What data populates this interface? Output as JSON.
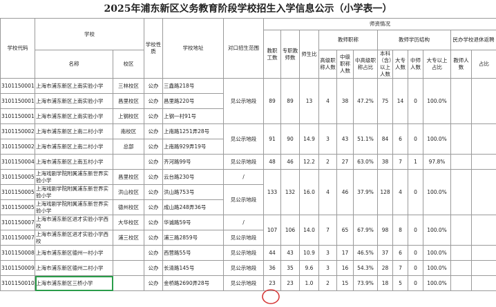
{
  "title": "2025年浦东新区义务教育阶段学校招生入学信息公示（小学表一）",
  "header": {
    "code": "学校代码",
    "school": "学校",
    "name": "名称",
    "campus": "校区",
    "nature": "学校性质",
    "address": "学校地址",
    "scope": "对口招生范围",
    "staffing": "师资情况",
    "staff": "教职工数",
    "teachers": "专职教师数",
    "ratio": "师生比",
    "titles": "教师职称",
    "senior": "高级职称人数",
    "middle": "中级职称人数",
    "mid_senior_pct": "中高级职称占比",
    "education": "教师学历结构",
    "bachelor": "本科（含）以上人数",
    "college": "大专人数",
    "normal": "中师人数",
    "college_pct": "大专以上占比",
    "private": "民办学校退休返聘",
    "private_teachers": "教师人数",
    "private_pct": "占比"
  },
  "rows": [
    {
      "code": "3101150001",
      "name": "上海市浦东新区上南实验小学",
      "campus": "三林校区",
      "nature": "公办",
      "address": "三鑫路218号",
      "scope": "见公示地段",
      "staff": 89,
      "teachers": 89,
      "ratio": "13",
      "senior": 4,
      "middle": 38,
      "mid_senior_pct": "47.2%",
      "bachelor": 75,
      "college": 14,
      "normal": 0,
      "college_pct": "100.0%"
    },
    {
      "code": "3101150001",
      "name": "上海市浦东新区上南实验小学",
      "campus": "昌里校区",
      "nature": "公办",
      "address": "昌里路220号"
    },
    {
      "code": "3101150001",
      "name": "上海市浦东新区上南实验小学",
      "campus": "上钢校区",
      "nature": "公办",
      "address": "上钢一村91号"
    },
    {
      "code": "3101150002",
      "name": "上海市浦东新区上南二村小学",
      "campus": "南校区",
      "nature": "公办",
      "address": "上南路1251弄28号",
      "scope": "见公示地段",
      "staff": 91,
      "teachers": 90,
      "ratio": "14.9",
      "senior": 3,
      "middle": 43,
      "mid_senior_pct": "51.1%",
      "bachelor": 84,
      "college": 6,
      "normal": 0,
      "college_pct": "100.0%"
    },
    {
      "code": "3101150002",
      "name": "上海市浦东新区上南二村小学",
      "campus": "总部",
      "nature": "公办",
      "address": "上南路929弄19号"
    },
    {
      "code": "3101150004",
      "name": "上海市浦东新区上南五村小学",
      "nature": "公办",
      "address": "齐河路99号",
      "scope": "见公示地段",
      "staff": 48,
      "teachers": 46,
      "ratio": "12.2",
      "senior": 2,
      "middle": 27,
      "mid_senior_pct": "63.0%",
      "bachelor": 38,
      "college": 7,
      "normal": 1,
      "college_pct": "97.8%"
    },
    {
      "code": "3101150005",
      "name": "上海戏剧学院附属浦东新世界实验小学",
      "campus": "昌里校区",
      "nature": "公办",
      "address": "云台路230号",
      "scope": "/",
      "staff": 133,
      "teachers": 132,
      "ratio": "16.0",
      "senior": 4,
      "middle": 46,
      "mid_senior_pct": "37.9%",
      "bachelor": 128,
      "college": 4,
      "normal": 0,
      "college_pct": "100.0%"
    },
    {
      "code": "3101150005",
      "name": "上海戏剧学院附属浦东新世界实验小学",
      "campus": "洪山校区",
      "nature": "公办",
      "address": "洪山路753号",
      "scope": "见公示地段"
    },
    {
      "code": "3101150005",
      "name": "上海戏剧学院附属浦东新世界实验小学",
      "campus": "德州校区",
      "nature": "公办",
      "address": "成山路248弄36号"
    },
    {
      "code": "3101150007",
      "name": "上海市浦东新区进才实验小学西校",
      "campus": "大华校区",
      "nature": "公办",
      "address": "华诚路59号",
      "scope": "/",
      "staff": 107,
      "teachers": 106,
      "ratio": "14.0",
      "senior": 7,
      "middle": 65,
      "mid_senior_pct": "67.9%",
      "bachelor": 98,
      "college": 8,
      "normal": 0,
      "college_pct": "100.0%"
    },
    {
      "code": "3101150007",
      "name": "上海市浦东新区进才实验小学西校",
      "campus": "浦三校区",
      "nature": "公办",
      "address": "浦三路2859号",
      "scope": "见公示地段"
    },
    {
      "code": "3101150008",
      "name": "上海市浦东新区德州一村小学",
      "nature": "公办",
      "address": "西营路55号",
      "scope": "见公示地段",
      "staff": 44,
      "teachers": 43,
      "ratio": "10.9",
      "senior": 3,
      "middle": 17,
      "mid_senior_pct": "46.5%",
      "bachelor": 37,
      "college": 6,
      "normal": 0,
      "college_pct": "100.0%"
    },
    {
      "code": "3101150009",
      "name": "上海市浦东新区德州二村小学",
      "nature": "公办",
      "address": "长清路145号",
      "scope": "见公示地段",
      "staff": 36,
      "teachers": 35,
      "ratio": "9.6",
      "senior": 3,
      "middle": 16,
      "mid_senior_pct": "54.3%",
      "bachelor": 28,
      "college": 7,
      "normal": 0,
      "college_pct": "100.0%"
    },
    {
      "code": "3101150010",
      "name": "上海市浦东新区三桥小学",
      "nature": "公办",
      "address": "金桥路2690弄28号",
      "scope": "见公示地段",
      "staff": 23,
      "teachers": 23,
      "ratio": "1.0",
      "senior": 2,
      "middle": 15,
      "mid_senior_pct": "73.9%",
      "bachelor": 18,
      "college": 5,
      "normal": 0,
      "college_pct": "100.0%"
    }
  ]
}
